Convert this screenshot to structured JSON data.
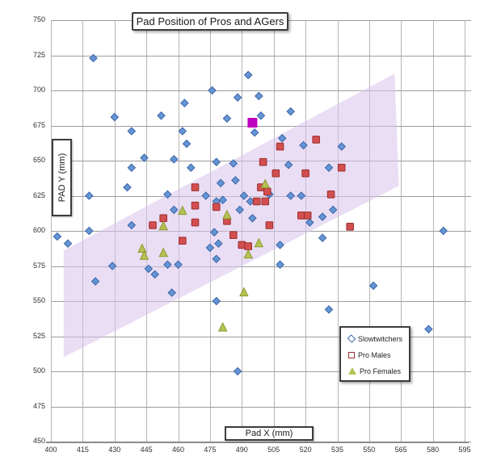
{
  "chart_data": {
    "type": "scatter",
    "title": "Pad Position of Pros and AGers",
    "xlabel": "Pad X (mm)",
    "ylabel": "PAD Y (mm)",
    "xlim": [
      400,
      595
    ],
    "ylim": [
      450,
      750
    ],
    "xticks": [
      400,
      415,
      430,
      445,
      460,
      475,
      490,
      505,
      520,
      535,
      550,
      565,
      580,
      595
    ],
    "yticks": [
      450,
      475,
      500,
      525,
      550,
      575,
      600,
      625,
      650,
      675,
      700,
      725,
      750
    ],
    "grid": true,
    "legend_position": "inside-lower-right",
    "series": [
      {
        "name": "Slowtwitchers",
        "marker": "diamond",
        "color": "#6494d4",
        "edge": "#3c66a8",
        "points": [
          [
            420,
            723
          ],
          [
            430,
            681
          ],
          [
            452,
            682
          ],
          [
            438,
            671
          ],
          [
            463,
            691
          ],
          [
            462,
            671
          ],
          [
            464,
            662
          ],
          [
            444,
            652
          ],
          [
            458,
            651
          ],
          [
            438,
            645
          ],
          [
            466,
            645
          ],
          [
            436,
            631
          ],
          [
            493,
            711
          ],
          [
            476,
            700
          ],
          [
            498,
            696
          ],
          [
            488,
            695
          ],
          [
            513,
            685
          ],
          [
            483,
            680
          ],
          [
            499,
            682
          ],
          [
            496,
            670
          ],
          [
            509,
            666
          ],
          [
            519,
            661
          ],
          [
            478,
            649
          ],
          [
            486,
            648
          ],
          [
            512,
            647
          ],
          [
            531,
            645
          ],
          [
            537,
            660
          ],
          [
            480,
            634
          ],
          [
            487,
            636
          ],
          [
            418,
            625
          ],
          [
            455,
            626
          ],
          [
            458,
            615
          ],
          [
            438,
            604
          ],
          [
            418,
            600
          ],
          [
            403,
            596
          ],
          [
            408,
            591
          ],
          [
            429,
            575
          ],
          [
            421,
            564
          ],
          [
            446,
            573
          ],
          [
            449,
            569
          ],
          [
            455,
            576
          ],
          [
            460,
            576
          ],
          [
            457,
            556
          ],
          [
            473,
            625
          ],
          [
            481,
            622
          ],
          [
            478,
            621
          ],
          [
            491,
            625
          ],
          [
            494,
            621
          ],
          [
            503,
            626
          ],
          [
            513,
            625
          ],
          [
            518,
            625
          ],
          [
            489,
            615
          ],
          [
            495,
            609
          ],
          [
            528,
            610
          ],
          [
            533,
            615
          ],
          [
            522,
            606
          ],
          [
            477,
            599
          ],
          [
            528,
            595
          ],
          [
            479,
            591
          ],
          [
            475,
            588
          ],
          [
            508,
            590
          ],
          [
            478,
            580
          ],
          [
            508,
            576
          ],
          [
            585,
            600
          ],
          [
            552,
            561
          ],
          [
            531,
            544
          ],
          [
            478,
            550
          ],
          [
            578,
            530
          ],
          [
            488,
            500
          ]
        ]
      },
      {
        "name": "Pro Males",
        "marker": "square",
        "color": "#d34f4f",
        "edge": "#9c2f2f",
        "points": [
          [
            508,
            660
          ],
          [
            525,
            665
          ],
          [
            520,
            641
          ],
          [
            506,
            641
          ],
          [
            500,
            649
          ],
          [
            532,
            626
          ],
          [
            537,
            645
          ],
          [
            541,
            603
          ],
          [
            468,
            631
          ],
          [
            499,
            631
          ],
          [
            502,
            628
          ],
          [
            497,
            621
          ],
          [
            501,
            621
          ],
          [
            468,
            618
          ],
          [
            478,
            617
          ],
          [
            468,
            606
          ],
          [
            483,
            607
          ],
          [
            503,
            604
          ],
          [
            518,
            611
          ],
          [
            521,
            611
          ],
          [
            486,
            597
          ],
          [
            490,
            590
          ],
          [
            493,
            589
          ],
          [
            462,
            593
          ],
          [
            453,
            609
          ],
          [
            448,
            604
          ]
        ]
      },
      {
        "name": "Pro Females",
        "marker": "triangle",
        "color": "#b5c254",
        "edge": "#8a9a2e",
        "points": [
          [
            501,
            633
          ],
          [
            483,
            611
          ],
          [
            462,
            614
          ],
          [
            453,
            603
          ],
          [
            443,
            587
          ],
          [
            444,
            582
          ],
          [
            453,
            584
          ],
          [
            498,
            591
          ],
          [
            493,
            583
          ],
          [
            491,
            556
          ],
          [
            481,
            531
          ]
        ]
      }
    ],
    "highlight_point": {
      "name": "highlighted-pad-position",
      "marker": "square",
      "color": "#bf00bf",
      "point": [
        495,
        677
      ]
    },
    "band": {
      "name": "trend-band",
      "color": "#d9c3ec",
      "opacity": 0.55,
      "polygon": [
        [
          406,
          510
        ],
        [
          406,
          586
        ],
        [
          562,
          712
        ],
        [
          564,
          632
        ]
      ]
    },
    "colors": {
      "grid_vertical": "#b5b5b5",
      "grid_horizontal": "#9d9d9d",
      "axis_line": "#8a8a8a",
      "tick_text": "#303030",
      "box_border": "#3c3c3c"
    }
  }
}
